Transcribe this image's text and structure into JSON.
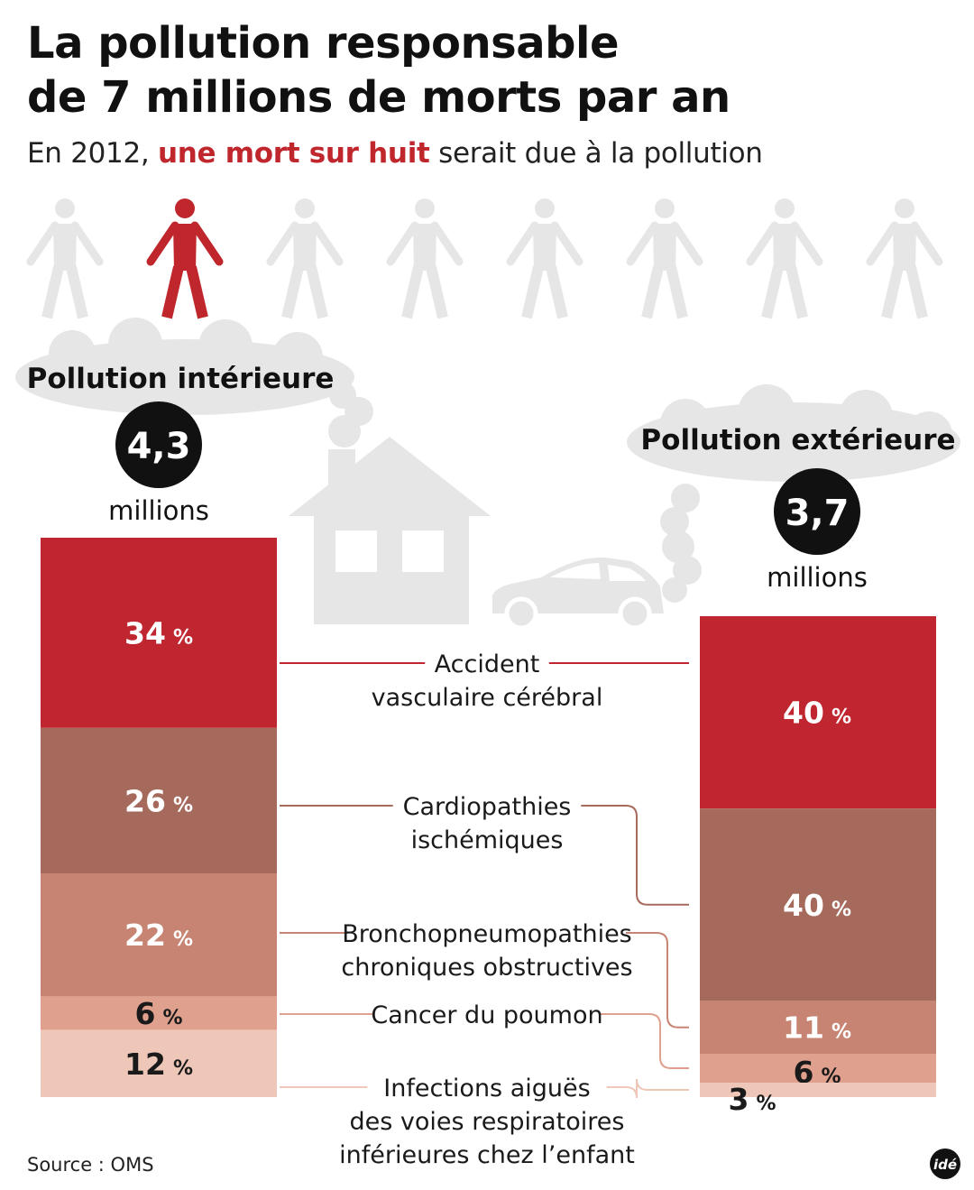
{
  "title_line1": "La pollution responsable",
  "title_line2": "de 7 millions de morts par an",
  "subtitle": {
    "before": "En 2012, ",
    "highlight": "une mort sur huit",
    "after": " serait due à la pollution"
  },
  "pictogram": {
    "total": 8,
    "highlighted_index": 1
  },
  "colors": {
    "avc": "#bf2630",
    "cardio": "#a66a5c",
    "bpco": "#c78473",
    "cancer": "#dfa08d",
    "infection": "#efc7b8",
    "grey": "#e6e6e6",
    "highlight": "#c0272d"
  },
  "chart_data": {
    "type": "bar",
    "unit": "%",
    "categories": [
      "Accident vasculaire cérébral",
      "Cardiopathies ischémiques",
      "Bronchopneumopathies chroniques obstructives",
      "Cancer du poumon",
      "Infections aiguës des voies respiratoires inférieures chez l’enfant"
    ],
    "series": [
      {
        "name": "Pollution intérieure",
        "total": "4,3",
        "total_unit": "millions",
        "values": [
          34,
          26,
          22,
          6,
          12
        ]
      },
      {
        "name": "Pollution extérieure",
        "total": "3,7",
        "total_unit": "millions",
        "values": [
          40,
          40,
          11,
          6,
          3
        ]
      }
    ],
    "category_label_lines": [
      [
        "Accident",
        "vasculaire cérébral"
      ],
      [
        "Cardiopathies",
        "ischémiques"
      ],
      [
        "Bronchopneumopathies",
        "chroniques obstructives"
      ],
      [
        "Cancer du poumon"
      ],
      [
        "Infections aiguës",
        "des voies respiratoires",
        "inférieures chez l’enfant"
      ]
    ]
  },
  "source": "Source : OMS",
  "logo": "idé"
}
